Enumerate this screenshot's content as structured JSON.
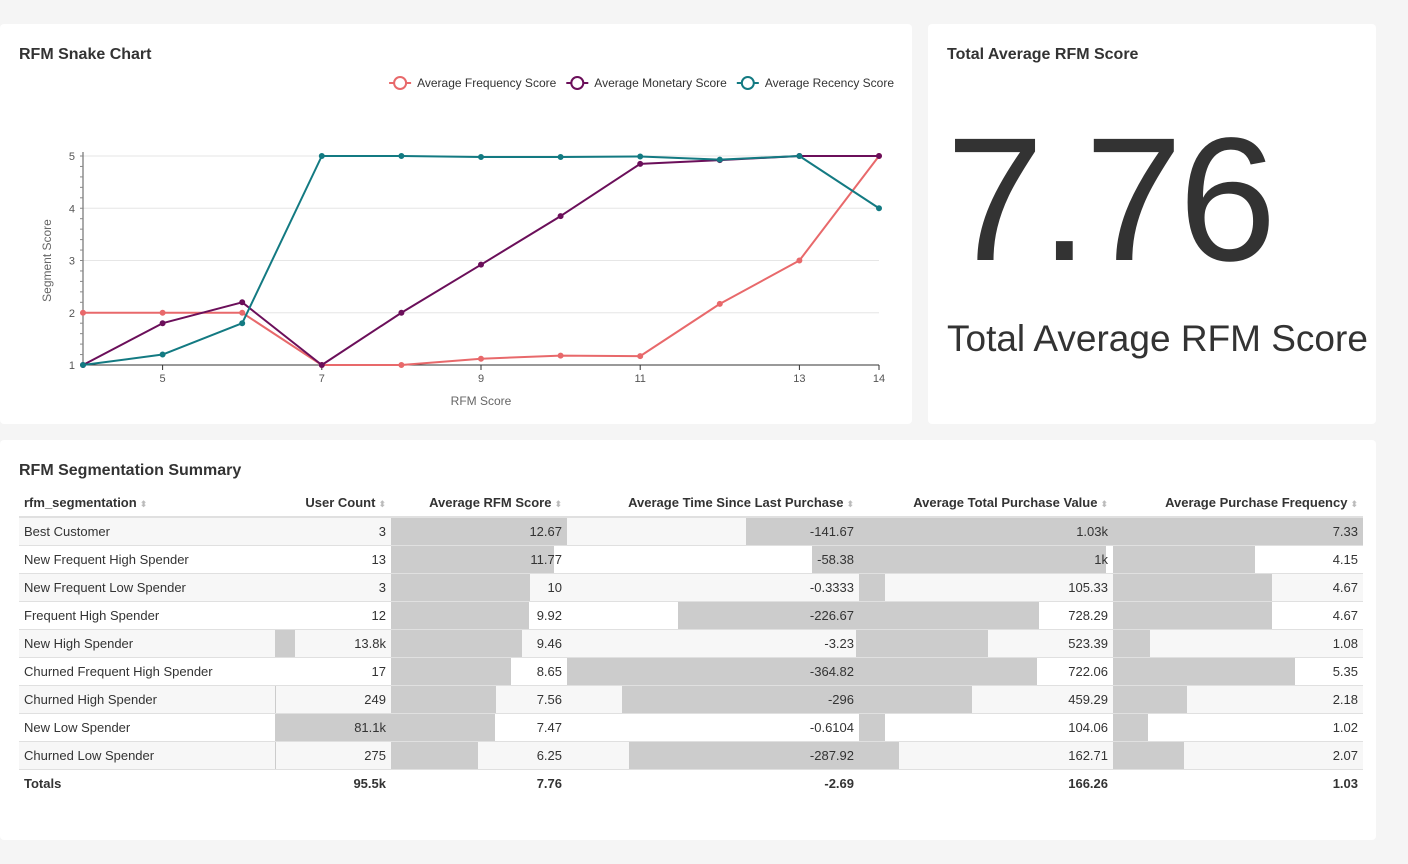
{
  "chart_card": {
    "title": "RFM Snake Chart"
  },
  "chart_data": {
    "type": "line",
    "title": "RFM Snake Chart",
    "xlabel": "RFM Score",
    "ylabel": "Segment Score",
    "x": [
      4,
      5,
      6,
      7,
      8,
      9,
      10,
      11,
      12,
      13,
      14
    ],
    "xticks": [
      5,
      7,
      9,
      11,
      13,
      14
    ],
    "yticks": [
      1,
      2,
      3,
      4,
      5
    ],
    "xlim": [
      4,
      14
    ],
    "ylim": [
      1,
      5
    ],
    "legend_position": "top-right",
    "series": [
      {
        "name": "Average Frequency Score",
        "color": "#e8696b",
        "values": [
          2,
          2,
          2,
          1,
          1,
          1.12,
          1.18,
          1.17,
          2.17,
          3,
          5
        ]
      },
      {
        "name": "Average Monetary Score",
        "color": "#6b0f5a",
        "values": [
          1,
          1.8,
          2.2,
          1,
          2,
          2.92,
          3.85,
          4.85,
          4.92,
          5,
          5
        ]
      },
      {
        "name": "Average Recency Score",
        "color": "#137a82",
        "values": [
          1,
          1.2,
          1.8,
          5,
          5,
          4.98,
          4.98,
          4.99,
          4.93,
          5,
          4
        ]
      }
    ]
  },
  "kpi_card": {
    "title": "Total Average RFM Score",
    "value": "7.76",
    "label": "Total Average RFM Score"
  },
  "table_card": {
    "title": "RFM Segmentation Summary",
    "columns": [
      "rfm_segmentation",
      "User Count",
      "Average RFM Score",
      "Average Time Since Last Purchase",
      "Average Total Purchase Value",
      "Average Purchase Frequency"
    ],
    "rows": [
      {
        "segment": "Best Customer",
        "user_count": "3",
        "user_count_num": 3,
        "rfm": "12.67",
        "rfm_num": 12.67,
        "time": "-141.67",
        "time_num": -141.67,
        "value": "1.03k",
        "value_num": 1030,
        "freq": "7.33",
        "freq_num": 7.33
      },
      {
        "segment": "New Frequent High Spender",
        "user_count": "13",
        "user_count_num": 13,
        "rfm": "11.77",
        "rfm_num": 11.77,
        "time": "-58.38",
        "time_num": -58.38,
        "value": "1k",
        "value_num": 1000,
        "freq": "4.15",
        "freq_num": 4.15
      },
      {
        "segment": "New Frequent Low Spender",
        "user_count": "3",
        "user_count_num": 3,
        "rfm": "10",
        "rfm_num": 10,
        "time": "-0.3333",
        "time_num": -0.3333,
        "value": "105.33",
        "value_num": 105.33,
        "freq": "4.67",
        "freq_num": 4.67
      },
      {
        "segment": "Frequent High Spender",
        "user_count": "12",
        "user_count_num": 12,
        "rfm": "9.92",
        "rfm_num": 9.92,
        "time": "-226.67",
        "time_num": -226.67,
        "value": "728.29",
        "value_num": 728.29,
        "freq": "4.67",
        "freq_num": 4.67
      },
      {
        "segment": "New High Spender",
        "user_count": "13.8k",
        "user_count_num": 13800,
        "rfm": "9.46",
        "rfm_num": 9.46,
        "time": "-3.23",
        "time_num": -3.23,
        "value": "523.39",
        "value_num": 523.39,
        "freq": "1.08",
        "freq_num": 1.08
      },
      {
        "segment": "Churned Frequent High Spender",
        "user_count": "17",
        "user_count_num": 17,
        "rfm": "8.65",
        "rfm_num": 8.65,
        "time": "-364.82",
        "time_num": -364.82,
        "value": "722.06",
        "value_num": 722.06,
        "freq": "5.35",
        "freq_num": 5.35
      },
      {
        "segment": "Churned High Spender",
        "user_count": "249",
        "user_count_num": 249,
        "rfm": "7.56",
        "rfm_num": 7.56,
        "time": "-296",
        "time_num": -296,
        "value": "459.29",
        "value_num": 459.29,
        "freq": "2.18",
        "freq_num": 2.18
      },
      {
        "segment": "New Low Spender",
        "user_count": "81.1k",
        "user_count_num": 81100,
        "rfm": "7.47",
        "rfm_num": 7.47,
        "time": "-0.6104",
        "time_num": -0.6104,
        "value": "104.06",
        "value_num": 104.06,
        "freq": "1.02",
        "freq_num": 1.02
      },
      {
        "segment": "Churned Low Spender",
        "user_count": "275",
        "user_count_num": 275,
        "rfm": "6.25",
        "rfm_num": 6.25,
        "time": "-287.92",
        "time_num": -287.92,
        "value": "162.71",
        "value_num": 162.71,
        "freq": "2.07",
        "freq_num": 2.07
      }
    ],
    "totals": {
      "label": "Totals",
      "user_count": "95.5k",
      "rfm": "7.76",
      "time": "-2.69",
      "value": "166.26",
      "freq": "1.03"
    },
    "bar_color": "#cccccc"
  }
}
